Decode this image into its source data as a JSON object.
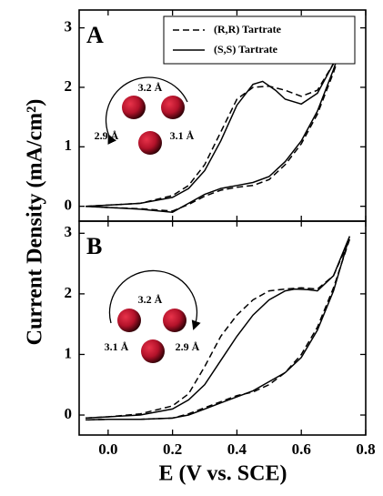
{
  "chart_data": [
    {
      "type": "line",
      "panel_label": "A",
      "y_label": "Current Density (mA/cm²)",
      "ylim": [
        -0.25,
        3.3
      ],
      "yticks": [
        0,
        1,
        2,
        3
      ],
      "xlim": [
        -0.09,
        0.8
      ],
      "legend": "upper right",
      "annotations": [
        "3.2 Å",
        "2.9 Å",
        "3.1 Å"
      ],
      "series": [
        {
          "name": "(R,R) Tartrate",
          "color": "#000000",
          "linestyle": "dashed",
          "x": [
            -0.07,
            0.0,
            0.1,
            0.2,
            0.25,
            0.3,
            0.35,
            0.4,
            0.45,
            0.5,
            0.55,
            0.6,
            0.65,
            0.7,
            0.75,
            0.7,
            0.65,
            0.6,
            0.55,
            0.5,
            0.45,
            0.4,
            0.35,
            0.3,
            0.25,
            0.2,
            0.1,
            0.0,
            -0.07
          ],
          "values": [
            0.0,
            0.02,
            0.05,
            0.18,
            0.35,
            0.7,
            1.25,
            1.8,
            2.0,
            2.02,
            1.95,
            1.85,
            1.95,
            2.4,
            3.05,
            2.25,
            1.55,
            1.05,
            0.7,
            0.45,
            0.35,
            0.32,
            0.27,
            0.17,
            0.03,
            -0.08,
            -0.04,
            -0.02,
            0.0
          ]
        },
        {
          "name": "(S,S) Tartrate",
          "color": "#000000",
          "linestyle": "solid",
          "x": [
            -0.07,
            0.0,
            0.1,
            0.2,
            0.25,
            0.3,
            0.35,
            0.4,
            0.45,
            0.48,
            0.52,
            0.55,
            0.6,
            0.65,
            0.7,
            0.75,
            0.7,
            0.65,
            0.6,
            0.55,
            0.5,
            0.45,
            0.4,
            0.35,
            0.3,
            0.25,
            0.2,
            0.1,
            0.0,
            -0.07
          ],
          "values": [
            0.0,
            0.02,
            0.05,
            0.15,
            0.3,
            0.6,
            1.1,
            1.7,
            2.05,
            2.1,
            1.95,
            1.8,
            1.72,
            1.9,
            2.4,
            3.1,
            2.3,
            1.6,
            1.1,
            0.75,
            0.5,
            0.4,
            0.35,
            0.3,
            0.2,
            0.05,
            -0.1,
            -0.05,
            -0.02,
            0.0
          ]
        }
      ]
    },
    {
      "type": "line",
      "panel_label": "B",
      "x_label": "E (V vs. SCE)",
      "ylim": [
        -0.33,
        3.2
      ],
      "yticks": [
        0,
        1,
        2,
        3
      ],
      "xlim": [
        -0.09,
        0.8
      ],
      "xticks": [
        {
          "value": 0,
          "label": "0.0"
        },
        0.2,
        0.4,
        0.6,
        0.8
      ],
      "annotations": [
        "3.2 Å",
        "3.1 Å",
        "2.9 Å"
      ],
      "series": [
        {
          "color": "#000000",
          "linestyle": "dashed",
          "x": [
            -0.07,
            0.0,
            0.1,
            0.2,
            0.25,
            0.3,
            0.35,
            0.4,
            0.45,
            0.5,
            0.55,
            0.6,
            0.65,
            0.7,
            0.75,
            0.7,
            0.65,
            0.6,
            0.55,
            0.5,
            0.45,
            0.4,
            0.35,
            0.3,
            0.25,
            0.2,
            0.1,
            0.0,
            -0.07
          ],
          "values": [
            -0.05,
            -0.03,
            0.02,
            0.15,
            0.35,
            0.8,
            1.3,
            1.65,
            1.9,
            2.05,
            2.08,
            2.1,
            2.08,
            2.3,
            2.9,
            2.1,
            1.45,
            1.0,
            0.7,
            0.5,
            0.38,
            0.32,
            0.22,
            0.12,
            0.02,
            -0.05,
            -0.07,
            -0.07,
            -0.08
          ]
        },
        {
          "color": "#000000",
          "linestyle": "solid",
          "x": [
            -0.07,
            0.0,
            0.1,
            0.2,
            0.25,
            0.3,
            0.35,
            0.4,
            0.45,
            0.5,
            0.55,
            0.58,
            0.62,
            0.65,
            0.7,
            0.75,
            0.7,
            0.65,
            0.6,
            0.55,
            0.5,
            0.45,
            0.4,
            0.35,
            0.3,
            0.25,
            0.2,
            0.1,
            0.0,
            -0.07
          ],
          "values": [
            -0.05,
            -0.03,
            0.0,
            0.1,
            0.25,
            0.5,
            0.9,
            1.3,
            1.65,
            1.9,
            2.05,
            2.08,
            2.07,
            2.05,
            2.3,
            2.95,
            2.05,
            1.4,
            0.95,
            0.7,
            0.55,
            0.4,
            0.3,
            0.2,
            0.1,
            0.0,
            -0.05,
            -0.07,
            -0.07,
            -0.08
          ]
        }
      ]
    }
  ]
}
